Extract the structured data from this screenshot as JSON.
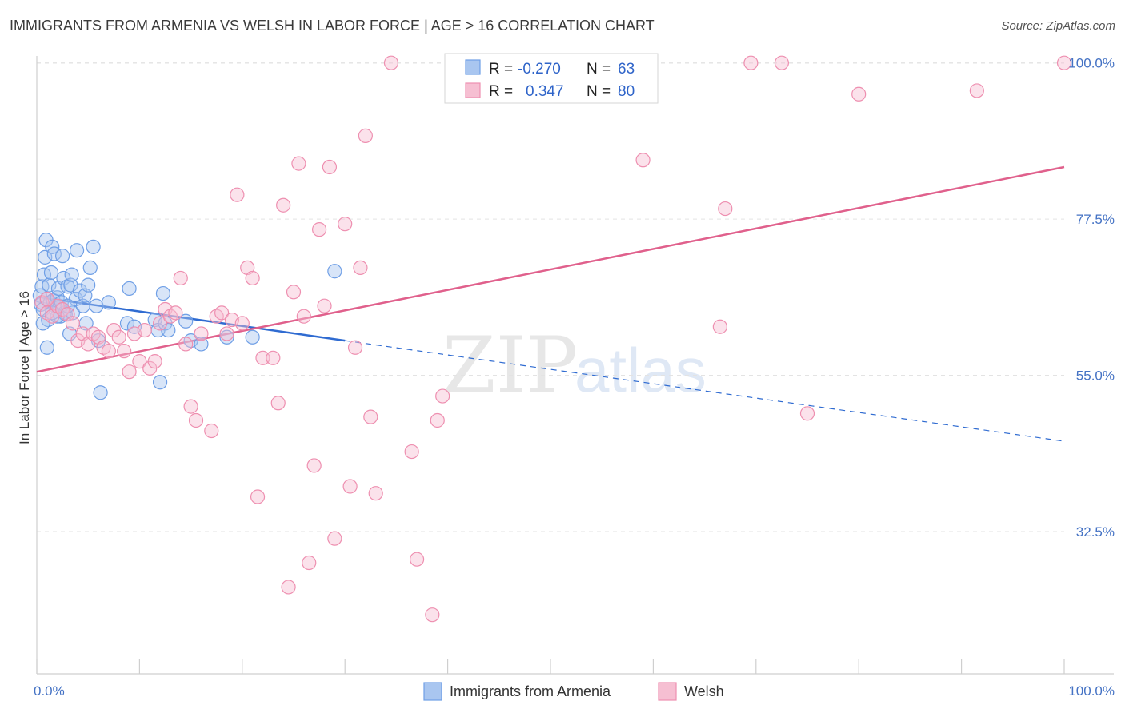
{
  "header": {
    "title": "IMMIGRANTS FROM ARMENIA VS WELSH IN LABOR FORCE | AGE > 16 CORRELATION CHART",
    "source": "Source: ZipAtlas.com"
  },
  "watermark": {
    "zip": "ZIP",
    "atlas": "atlas"
  },
  "legend": {
    "rows": [
      {
        "r_label": "R =",
        "r_value": "-0.270",
        "n_label": "N =",
        "n_value": "63"
      },
      {
        "r_label": "R =",
        "r_value": "0.347",
        "n_label": "N =",
        "n_value": "80"
      }
    ]
  },
  "chart_data": {
    "type": "scatter",
    "xlabel": "",
    "ylabel": "In Labor Force | Age > 16",
    "xlim": [
      0,
      100
    ],
    "ylim": [
      12,
      101
    ],
    "x_tick_labels": [
      {
        "value": 0,
        "label": "0.0%"
      },
      {
        "value": 100,
        "label": "100.0%"
      }
    ],
    "y_ticks": [
      {
        "value": 32.5,
        "label": "32.5%"
      },
      {
        "value": 55.0,
        "label": "55.0%"
      },
      {
        "value": 77.5,
        "label": "77.5%"
      },
      {
        "value": 100.0,
        "label": "100.0%"
      }
    ],
    "grid": true,
    "legend_placement": "top-center",
    "series": [
      {
        "name": "Immigrants from Armenia",
        "color": "#6f9fe6",
        "fill": "#a9c6f0",
        "trend": {
          "x": [
            0.5,
            30
          ],
          "y": [
            66.2,
            60.0
          ],
          "dashed_to": [
            100,
            45.5
          ],
          "color": "#2f6bd1"
        },
        "points": [
          [
            0.3,
            66.5
          ],
          [
            0.4,
            65.2
          ],
          [
            0.5,
            67.8
          ],
          [
            0.6,
            64.5
          ],
          [
            0.7,
            69.5
          ],
          [
            0.8,
            72.0
          ],
          [
            0.9,
            74.5
          ],
          [
            1.0,
            66.0
          ],
          [
            1.1,
            63.0
          ],
          [
            1.2,
            68.0
          ],
          [
            1.3,
            65.5
          ],
          [
            1.4,
            69.8
          ],
          [
            1.5,
            73.5
          ],
          [
            1.6,
            65.8
          ],
          [
            1.7,
            72.5
          ],
          [
            1.8,
            65.0
          ],
          [
            2.0,
            66.2
          ],
          [
            2.1,
            67.5
          ],
          [
            2.2,
            64.8
          ],
          [
            2.3,
            63.5
          ],
          [
            2.4,
            65.5
          ],
          [
            2.5,
            72.2
          ],
          [
            2.6,
            69.0
          ],
          [
            2.7,
            64.0
          ],
          [
            2.8,
            63.8
          ],
          [
            3.0,
            67.8
          ],
          [
            3.2,
            61.0
          ],
          [
            3.3,
            68.0
          ],
          [
            3.4,
            69.5
          ],
          [
            3.5,
            64.0
          ],
          [
            3.8,
            66.0
          ],
          [
            3.9,
            73.0
          ],
          [
            4.2,
            67.2
          ],
          [
            4.5,
            65.0
          ],
          [
            4.7,
            66.5
          ],
          [
            4.8,
            62.5
          ],
          [
            5.0,
            68.0
          ],
          [
            5.2,
            70.5
          ],
          [
            5.5,
            73.5
          ],
          [
            5.8,
            65.0
          ],
          [
            6.0,
            60.0
          ],
          [
            6.2,
            52.5
          ],
          [
            7.0,
            65.5
          ],
          [
            8.8,
            62.5
          ],
          [
            9.0,
            67.5
          ],
          [
            9.5,
            62.0
          ],
          [
            11.5,
            63.0
          ],
          [
            11.8,
            61.5
          ],
          [
            12.5,
            62.5
          ],
          [
            12.8,
            61.5
          ],
          [
            12.3,
            66.8
          ],
          [
            12.0,
            54.0
          ],
          [
            14.5,
            62.8
          ],
          [
            15.0,
            60.0
          ],
          [
            16.0,
            59.5
          ],
          [
            18.5,
            60.5
          ],
          [
            21.0,
            60.5
          ],
          [
            29.0,
            70.0
          ],
          [
            1.0,
            59.0
          ],
          [
            0.6,
            62.5
          ],
          [
            2.0,
            63.5
          ],
          [
            3.0,
            65.0
          ],
          [
            1.5,
            64.0
          ]
        ]
      },
      {
        "name": "Welsh",
        "color": "#ee8fb0",
        "fill": "#f6bfd2",
        "trend": {
          "x": [
            0,
            100
          ],
          "y": [
            55.5,
            85.0
          ],
          "color": "#e0608c"
        },
        "points": [
          [
            0.5,
            65.5
          ],
          [
            1.0,
            64.0
          ],
          [
            1.5,
            63.5
          ],
          [
            2.0,
            65.0
          ],
          [
            2.5,
            64.5
          ],
          [
            3.0,
            63.8
          ],
          [
            3.5,
            62.5
          ],
          [
            4.0,
            60.0
          ],
          [
            4.5,
            61.0
          ],
          [
            5.0,
            59.5
          ],
          [
            5.5,
            61.0
          ],
          [
            6.0,
            60.5
          ],
          [
            6.5,
            59.0
          ],
          [
            7.0,
            58.5
          ],
          [
            7.5,
            61.5
          ],
          [
            8.0,
            60.5
          ],
          [
            8.5,
            58.5
          ],
          [
            9.0,
            55.5
          ],
          [
            9.5,
            61.0
          ],
          [
            10.0,
            57.0
          ],
          [
            10.5,
            61.5
          ],
          [
            11.0,
            56.0
          ],
          [
            11.5,
            57.0
          ],
          [
            12.0,
            62.5
          ],
          [
            12.5,
            64.5
          ],
          [
            13.0,
            63.5
          ],
          [
            13.5,
            64.0
          ],
          [
            14.0,
            69.0
          ],
          [
            14.5,
            59.5
          ],
          [
            15.0,
            50.5
          ],
          [
            15.5,
            48.5
          ],
          [
            16.0,
            61.0
          ],
          [
            17.0,
            47.0
          ],
          [
            17.5,
            63.5
          ],
          [
            18.0,
            64.0
          ],
          [
            18.5,
            61.0
          ],
          [
            19.0,
            63.0
          ],
          [
            19.5,
            81.0
          ],
          [
            20.0,
            62.5
          ],
          [
            20.5,
            70.5
          ],
          [
            21.0,
            69.0
          ],
          [
            21.5,
            37.5
          ],
          [
            22.0,
            57.5
          ],
          [
            23.0,
            57.5
          ],
          [
            23.5,
            51.0
          ],
          [
            24.0,
            79.5
          ],
          [
            24.5,
            24.5
          ],
          [
            25.0,
            67.0
          ],
          [
            25.5,
            85.5
          ],
          [
            26.0,
            63.5
          ],
          [
            26.5,
            28.0
          ],
          [
            27.0,
            42.0
          ],
          [
            27.5,
            76.0
          ],
          [
            28.0,
            65.0
          ],
          [
            28.5,
            85.0
          ],
          [
            29.0,
            31.5
          ],
          [
            30.0,
            76.8
          ],
          [
            30.5,
            39.0
          ],
          [
            31.0,
            59.0
          ],
          [
            31.5,
            70.5
          ],
          [
            32.0,
            89.5
          ],
          [
            32.5,
            49.0
          ],
          [
            33.0,
            38.0
          ],
          [
            34.5,
            100.0
          ],
          [
            36.5,
            44.0
          ],
          [
            37.0,
            28.5
          ],
          [
            38.5,
            20.5
          ],
          [
            39.0,
            48.5
          ],
          [
            39.5,
            52.0
          ],
          [
            41.0,
            100.0
          ],
          [
            59.0,
            86.0
          ],
          [
            67.0,
            79.0
          ],
          [
            69.5,
            100.0
          ],
          [
            72.5,
            100.0
          ],
          [
            66.5,
            62.0
          ],
          [
            75.0,
            49.5
          ],
          [
            80.0,
            95.5
          ],
          [
            91.5,
            96.0
          ],
          [
            100.0,
            100.0
          ],
          [
            1.0,
            66.0
          ]
        ]
      }
    ]
  }
}
